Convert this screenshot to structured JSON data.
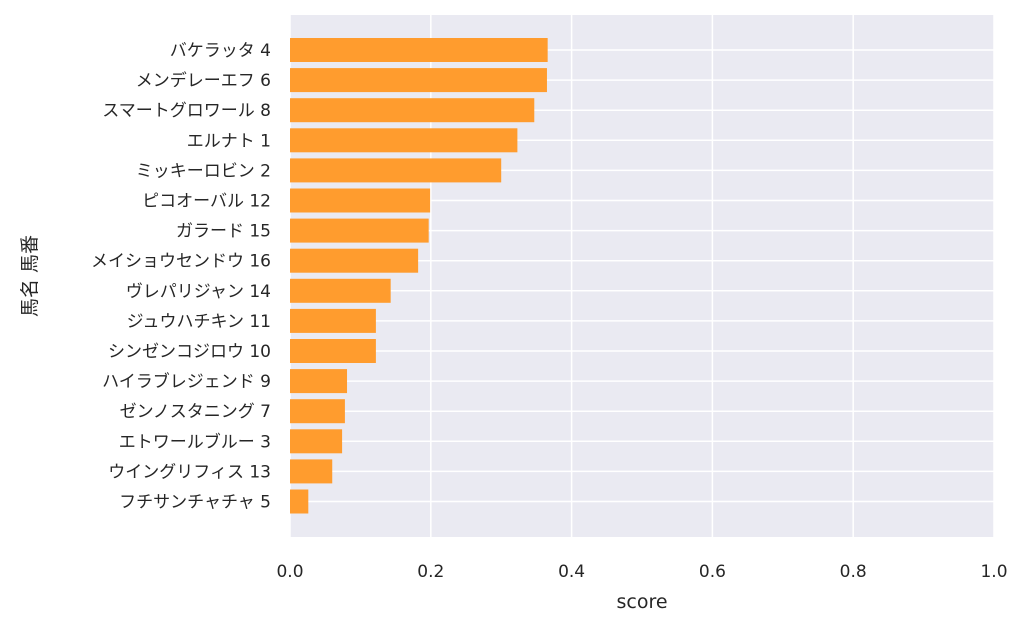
{
  "chart_data": {
    "type": "bar",
    "orientation": "horizontal",
    "xlabel": "score",
    "ylabel": "馬名 馬番",
    "xlim": [
      0.0,
      1.0
    ],
    "xticks": [
      "0.0",
      "0.2",
      "0.4",
      "0.6",
      "0.8",
      "1.0"
    ],
    "grid": true,
    "bar_color": "#FF9C2E",
    "background_color": "#EAEAF2",
    "categories": [
      "バケラッタ 4",
      "メンデレーエフ 6",
      "スマートグロワール 8",
      "エルナト 1",
      "ミッキーロビン 2",
      "ピコオーバル 12",
      "ガラード 15",
      "メイショウセンドウ 16",
      "ヴレパリジャン 14",
      "ジュウハチキン 11",
      "シンゼンコジロウ 10",
      "ハイラブレジェンド 9",
      "ゼンノスタニング 7",
      "エトワールブルー 3",
      "ウイングリフィス 13",
      "フチサンチャチャ 5"
    ],
    "values": [
      0.366,
      0.365,
      0.347,
      0.323,
      0.3,
      0.199,
      0.197,
      0.182,
      0.143,
      0.122,
      0.122,
      0.081,
      0.078,
      0.074,
      0.06,
      0.026
    ]
  }
}
